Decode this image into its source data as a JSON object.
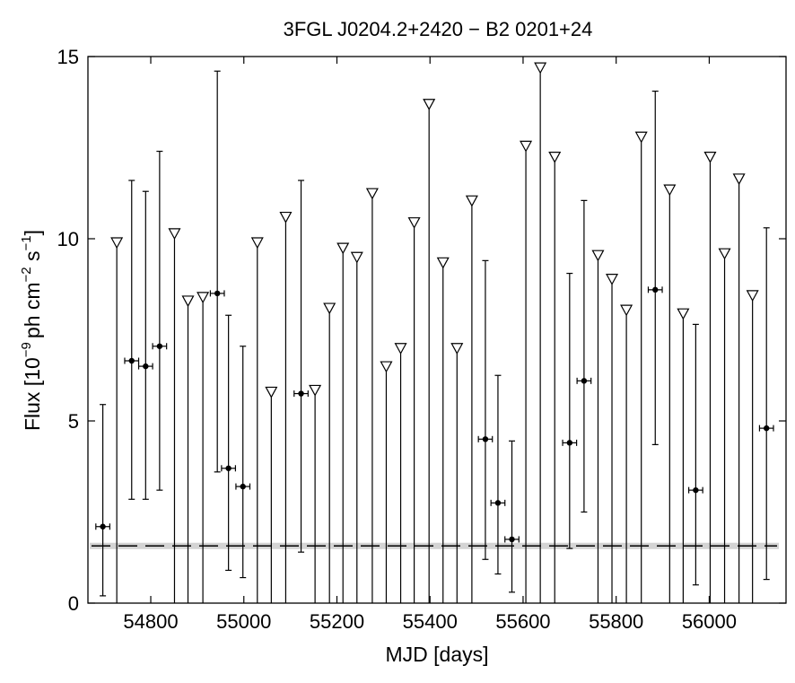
{
  "chart_data": {
    "type": "scatter",
    "title": "3FGL J0204.2+2420 − B2 0201+24",
    "xlabel": "MJD [days]",
    "ylabel_parts": [
      "Flux [10",
      "−9",
      "ph cm",
      "−2",
      " s",
      "−1",
      "]"
    ],
    "xlim": [
      54665,
      56165
    ],
    "ylim": [
      0,
      15
    ],
    "xticks": [
      54800,
      55000,
      55200,
      55400,
      55600,
      55800,
      56000
    ],
    "yticks": [
      0,
      5,
      10,
      15
    ],
    "reference_flux": 1.57,
    "detections": [
      {
        "x": 54697,
        "y": 2.1,
        "xerr": 15,
        "ylo": 0.2,
        "yhi": 5.45
      },
      {
        "x": 54759,
        "y": 6.65,
        "xerr": 15,
        "ylo": 2.85,
        "yhi": 11.6
      },
      {
        "x": 54789,
        "y": 6.5,
        "xerr": 15,
        "ylo": 2.85,
        "yhi": 11.3
      },
      {
        "x": 54819,
        "y": 7.05,
        "xerr": 15,
        "ylo": 3.1,
        "yhi": 12.4
      },
      {
        "x": 54943,
        "y": 8.5,
        "xerr": 15,
        "ylo": 3.6,
        "yhi": 14.6
      },
      {
        "x": 54967,
        "y": 3.7,
        "xerr": 15,
        "ylo": 0.9,
        "yhi": 7.9
      },
      {
        "x": 54998,
        "y": 3.2,
        "xerr": 15,
        "ylo": 0.7,
        "yhi": 7.05
      },
      {
        "x": 55123,
        "y": 5.75,
        "xerr": 15,
        "ylo": 1.4,
        "yhi": 11.6
      },
      {
        "x": 55519,
        "y": 4.5,
        "xerr": 15,
        "ylo": 1.2,
        "yhi": 9.4
      },
      {
        "x": 55546,
        "y": 2.75,
        "xerr": 15,
        "ylo": 0.8,
        "yhi": 6.25
      },
      {
        "x": 55576,
        "y": 1.75,
        "xerr": 15,
        "ylo": 0.3,
        "yhi": 4.45
      },
      {
        "x": 55700,
        "y": 4.4,
        "xerr": 15,
        "ylo": 1.5,
        "yhi": 9.05
      },
      {
        "x": 55731,
        "y": 6.1,
        "xerr": 15,
        "ylo": 2.5,
        "yhi": 11.05
      },
      {
        "x": 55884,
        "y": 8.6,
        "xerr": 15,
        "ylo": 4.35,
        "yhi": 14.05
      },
      {
        "x": 55971,
        "y": 3.1,
        "xerr": 15,
        "ylo": 0.5,
        "yhi": 7.65
      },
      {
        "x": 56123,
        "y": 4.8,
        "xerr": 15,
        "ylo": 0.65,
        "yhi": 10.3
      }
    ],
    "upper_limits": [
      {
        "x": 54727,
        "y": 10.0
      },
      {
        "x": 54851,
        "y": 10.25
      },
      {
        "x": 54880,
        "y": 8.4
      },
      {
        "x": 54912,
        "y": 8.5
      },
      {
        "x": 55029,
        "y": 10.0
      },
      {
        "x": 55059,
        "y": 5.9
      },
      {
        "x": 55090,
        "y": 10.7
      },
      {
        "x": 55153,
        "y": 5.95
      },
      {
        "x": 55184,
        "y": 8.2
      },
      {
        "x": 55213,
        "y": 9.85
      },
      {
        "x": 55243,
        "y": 9.6
      },
      {
        "x": 55276,
        "y": 11.35
      },
      {
        "x": 55306,
        "y": 6.6
      },
      {
        "x": 55337,
        "y": 7.1
      },
      {
        "x": 55366,
        "y": 10.55
      },
      {
        "x": 55398,
        "y": 13.8
      },
      {
        "x": 55428,
        "y": 9.45
      },
      {
        "x": 55458,
        "y": 7.1
      },
      {
        "x": 55490,
        "y": 11.15
      },
      {
        "x": 55606,
        "y": 12.65
      },
      {
        "x": 55637,
        "y": 14.8
      },
      {
        "x": 55668,
        "y": 12.35
      },
      {
        "x": 55761,
        "y": 9.65
      },
      {
        "x": 55791,
        "y": 9.0
      },
      {
        "x": 55822,
        "y": 8.15
      },
      {
        "x": 55854,
        "y": 12.9
      },
      {
        "x": 55915,
        "y": 11.45
      },
      {
        "x": 55944,
        "y": 8.05
      },
      {
        "x": 56002,
        "y": 12.35
      },
      {
        "x": 56033,
        "y": 9.7
      },
      {
        "x": 56064,
        "y": 11.75
      },
      {
        "x": 56093,
        "y": 8.55
      }
    ]
  }
}
